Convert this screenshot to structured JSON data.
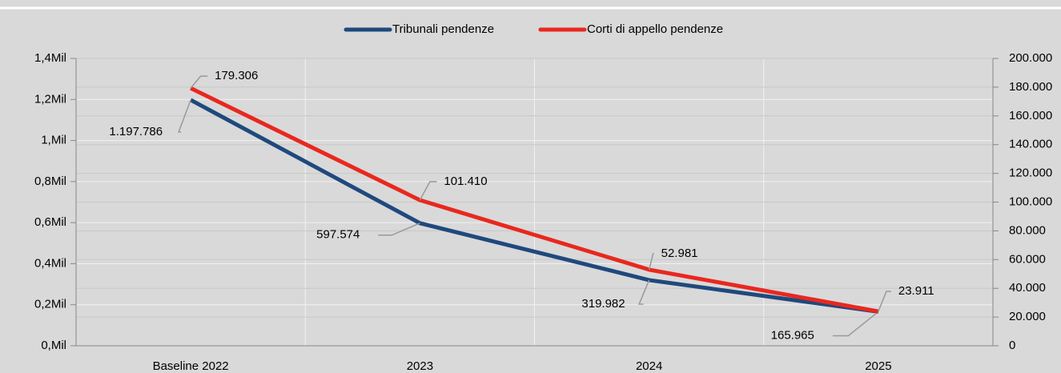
{
  "chart_data": {
    "type": "line",
    "categories": [
      "Baseline 2022",
      "2023",
      "2024",
      "2025"
    ],
    "series": [
      {
        "name": "Tribunali pendenze",
        "color": "#1f497d",
        "values": [
          1197786,
          597574,
          319982,
          165965
        ],
        "value_labels": [
          "1.197.786",
          "597.574",
          "319.982",
          "165.965"
        ]
      },
      {
        "name": "Corti di appello pendenze",
        "color": "#e8281f",
        "axis": "y2",
        "values": [
          179306,
          101410,
          52981,
          23911
        ],
        "value_labels": [
          "179.306",
          "101.410",
          "52.981",
          "23.911"
        ]
      }
    ],
    "ylim": [
      0,
      1400000
    ],
    "yticks": [
      {
        "value": 0,
        "label": "0,Mil"
      },
      {
        "value": 200000,
        "label": "0,2Mil"
      },
      {
        "value": 400000,
        "label": "0,4Mil"
      },
      {
        "value": 600000,
        "label": "0,6Mil"
      },
      {
        "value": 800000,
        "label": "0,8Mil"
      },
      {
        "value": 1000000,
        "label": "1,Mil"
      },
      {
        "value": 1200000,
        "label": "1,2Mil"
      },
      {
        "value": 1400000,
        "label": "1,4Mil"
      }
    ],
    "y2lim": [
      0,
      200000
    ],
    "y2ticks": [
      0,
      {
        "value": 20000,
        "label": "20.000"
      },
      {
        "value": 40000,
        "label": "40.000"
      },
      {
        "value": 60000,
        "label": "60.000"
      },
      {
        "value": 80000,
        "label": "80.000"
      },
      {
        "value": 100000,
        "label": "100.000"
      },
      {
        "value": 120000,
        "label": "120.000"
      },
      {
        "value": 140000,
        "label": "140.000"
      },
      {
        "value": 160000,
        "label": "160.000"
      },
      {
        "value": 180000,
        "label": "180.000"
      },
      {
        "value": 200000,
        "label": "200.000"
      }
    ],
    "grid": true,
    "legend": "top"
  }
}
